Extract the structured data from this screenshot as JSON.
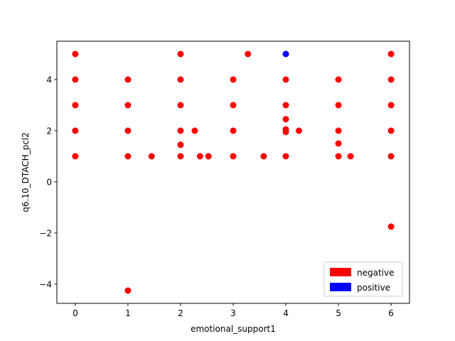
{
  "chart_data": {
    "type": "scatter",
    "title": "",
    "xlabel": "emotional_support1",
    "ylabel": "q6.10_DTACH_pcl2",
    "xlim": [
      -0.35,
      6.35
    ],
    "ylim": [
      -4.75,
      5.5
    ],
    "xticks": [
      0,
      1,
      2,
      3,
      4,
      5,
      6
    ],
    "yticks": [
      -4,
      -2,
      0,
      2,
      4
    ],
    "xtick_labels": [
      "0",
      "1",
      "2",
      "3",
      "4",
      "5",
      "6"
    ],
    "ytick_labels": [
      "−4",
      "−2",
      "0",
      "2",
      "4"
    ],
    "grid": false,
    "legend_position": "lower-right",
    "series": [
      {
        "name": "negative",
        "color": "#ff0000",
        "points": [
          [
            0,
            5
          ],
          [
            0,
            4
          ],
          [
            0,
            3
          ],
          [
            0,
            2
          ],
          [
            0,
            1
          ],
          [
            1,
            4
          ],
          [
            1,
            3
          ],
          [
            1,
            2
          ],
          [
            1,
            1
          ],
          [
            1,
            -4.25
          ],
          [
            1.45,
            1
          ],
          [
            2,
            5
          ],
          [
            2,
            4
          ],
          [
            2,
            3
          ],
          [
            2,
            2
          ],
          [
            2,
            1.45
          ],
          [
            2,
            1
          ],
          [
            2.27,
            2
          ],
          [
            2.37,
            1
          ],
          [
            2.53,
            1
          ],
          [
            3,
            4
          ],
          [
            3,
            3
          ],
          [
            3,
            2
          ],
          [
            3,
            1
          ],
          [
            3.28,
            5
          ],
          [
            3.58,
            1
          ],
          [
            4,
            4
          ],
          [
            4,
            3
          ],
          [
            4,
            2.45
          ],
          [
            4,
            2.05
          ],
          [
            4,
            1.95
          ],
          [
            4,
            1
          ],
          [
            4.25,
            2
          ],
          [
            5,
            4
          ],
          [
            5,
            3
          ],
          [
            5,
            2
          ],
          [
            5,
            1.5
          ],
          [
            5,
            1
          ],
          [
            5.23,
            1
          ],
          [
            6,
            5
          ],
          [
            6,
            4
          ],
          [
            6,
            3
          ],
          [
            6,
            2
          ],
          [
            6,
            1
          ],
          [
            6,
            -1.75
          ]
        ]
      },
      {
        "name": "positive",
        "color": "#0000ff",
        "points": [
          [
            4,
            5
          ]
        ]
      }
    ]
  }
}
